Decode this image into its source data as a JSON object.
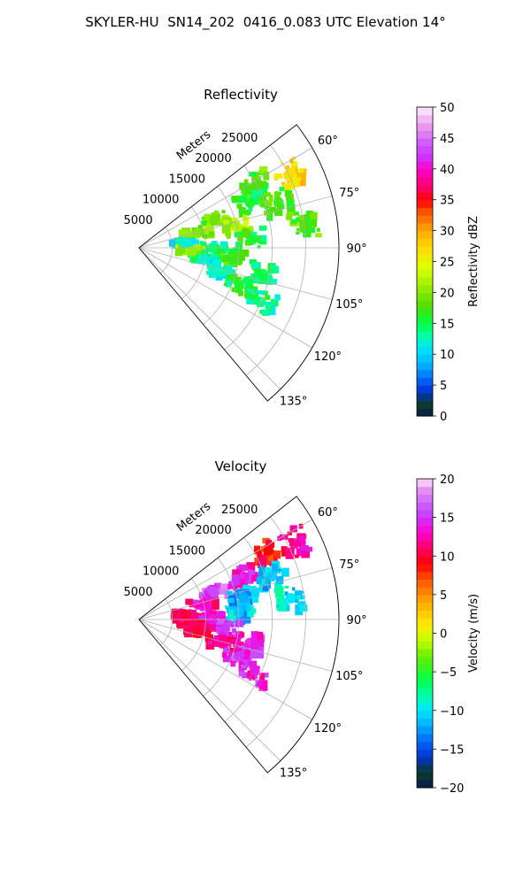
{
  "figure": {
    "suptitle": "SKYLER-HU  SN14_202  0416_0.083 UTC Elevation 14°"
  },
  "chart_data": [
    {
      "type": "heatmap",
      "projection": "polar-sector",
      "title": "Reflectivity",
      "radial_axis_label": "Meters",
      "radial_ticks": [
        "5000",
        "10000",
        "15000",
        "20000",
        "25000"
      ],
      "azimuth_ticks": [
        "60°",
        "75°",
        "90°",
        "105°",
        "120°",
        "135°"
      ],
      "azimuth_range_deg": [
        52,
        140
      ],
      "range_max_m": 30000,
      "colorbar": {
        "label": "Reflectivity dBZ",
        "min": 0,
        "max": 50,
        "ticks": [
          "0",
          "5",
          "10",
          "15",
          "20",
          "25",
          "30",
          "35",
          "40",
          "45",
          "50"
        ],
        "stops": [
          {
            "v": 0,
            "c": "#0a1a4a"
          },
          {
            "v": 2,
            "c": "#0b3d2a"
          },
          {
            "v": 4,
            "c": "#0033cc"
          },
          {
            "v": 6,
            "c": "#0066ff"
          },
          {
            "v": 8,
            "c": "#00aaff"
          },
          {
            "v": 11,
            "c": "#00e5ff"
          },
          {
            "v": 13,
            "c": "#00ffaa"
          },
          {
            "v": 15,
            "c": "#00ff44"
          },
          {
            "v": 18,
            "c": "#55dd00"
          },
          {
            "v": 21,
            "c": "#99ee00"
          },
          {
            "v": 24,
            "c": "#ddff00"
          },
          {
            "v": 27,
            "c": "#ffdd00"
          },
          {
            "v": 30,
            "c": "#ffaa00"
          },
          {
            "v": 33,
            "c": "#ff5500"
          },
          {
            "v": 35,
            "c": "#ff0000"
          },
          {
            "v": 37,
            "c": "#ff0066"
          },
          {
            "v": 40,
            "c": "#ff00cc"
          },
          {
            "v": 42,
            "c": "#cc33ff"
          },
          {
            "v": 44,
            "c": "#cc55ff"
          },
          {
            "v": 47,
            "c": "#ee99ee"
          },
          {
            "v": 50,
            "c": "#ffeeff"
          }
        ]
      },
      "cells": [
        {
          "az": 62,
          "r": 20000,
          "v": 18
        },
        {
          "az": 64,
          "r": 25000,
          "v": 27
        },
        {
          "az": 68,
          "r": 18000,
          "v": 16
        },
        {
          "az": 70,
          "r": 12000,
          "v": 19
        },
        {
          "az": 72,
          "r": 22000,
          "v": 17
        },
        {
          "az": 76,
          "r": 9000,
          "v": 20
        },
        {
          "az": 78,
          "r": 15000,
          "v": 22
        },
        {
          "az": 82,
          "r": 25000,
          "v": 18
        },
        {
          "az": 84,
          "r": 7000,
          "v": 12
        },
        {
          "az": 86,
          "r": 17000,
          "v": 16
        },
        {
          "az": 90,
          "r": 11000,
          "v": 14
        },
        {
          "az": 94,
          "r": 8000,
          "v": 21
        },
        {
          "az": 96,
          "r": 14000,
          "v": 17
        },
        {
          "az": 100,
          "r": 10000,
          "v": 12
        },
        {
          "az": 102,
          "r": 19000,
          "v": 15
        },
        {
          "az": 106,
          "r": 13000,
          "v": 13
        },
        {
          "az": 110,
          "r": 16000,
          "v": 16
        },
        {
          "az": 114,
          "r": 20000,
          "v": 14
        }
      ]
    },
    {
      "type": "heatmap",
      "projection": "polar-sector",
      "title": "Velocity",
      "radial_axis_label": "Meters",
      "radial_ticks": [
        "5000",
        "10000",
        "15000",
        "20000",
        "25000"
      ],
      "azimuth_ticks": [
        "60°",
        "75°",
        "90°",
        "105°",
        "120°",
        "135°"
      ],
      "azimuth_range_deg": [
        52,
        140
      ],
      "range_max_m": 30000,
      "colorbar": {
        "label": "Velocity (m/s)",
        "min": -20,
        "max": 20,
        "ticks": [
          "−20",
          "−15",
          "−10",
          "−5",
          "0",
          "5",
          "10",
          "15",
          "20"
        ],
        "stops": [
          {
            "v": -20,
            "c": "#0a1a4a"
          },
          {
            "v": -18,
            "c": "#0b3d2a"
          },
          {
            "v": -16,
            "c": "#0033cc"
          },
          {
            "v": -14,
            "c": "#0066ff"
          },
          {
            "v": -12,
            "c": "#00aaff"
          },
          {
            "v": -10,
            "c": "#00e5ff"
          },
          {
            "v": -8,
            "c": "#00ffaa"
          },
          {
            "v": -6,
            "c": "#00ff44"
          },
          {
            "v": -3,
            "c": "#66ee00"
          },
          {
            "v": -1,
            "c": "#bbff00"
          },
          {
            "v": 1,
            "c": "#ffee00"
          },
          {
            "v": 4,
            "c": "#ffaa00"
          },
          {
            "v": 7,
            "c": "#ff5500"
          },
          {
            "v": 9,
            "c": "#ff0000"
          },
          {
            "v": 11,
            "c": "#ff0066"
          },
          {
            "v": 13,
            "c": "#ff00cc"
          },
          {
            "v": 15,
            "c": "#cc33ff"
          },
          {
            "v": 17,
            "c": "#cc66ff"
          },
          {
            "v": 19,
            "c": "#ee99ee"
          },
          {
            "v": 20,
            "c": "#ffeeff"
          }
        ]
      },
      "cells": [
        {
          "az": 62,
          "r": 22000,
          "v": 9
        },
        {
          "az": 64,
          "r": 26000,
          "v": 12
        },
        {
          "az": 68,
          "r": 17000,
          "v": 14
        },
        {
          "az": 70,
          "r": 12000,
          "v": 16
        },
        {
          "az": 72,
          "r": 21000,
          "v": -11
        },
        {
          "az": 76,
          "r": 10000,
          "v": 13
        },
        {
          "az": 78,
          "r": 16000,
          "v": -12
        },
        {
          "az": 82,
          "r": 23000,
          "v": -10
        },
        {
          "az": 84,
          "r": 7000,
          "v": 10
        },
        {
          "az": 86,
          "r": 15000,
          "v": -11
        },
        {
          "az": 90,
          "r": 11000,
          "v": 14
        },
        {
          "az": 94,
          "r": 8000,
          "v": 11
        },
        {
          "az": 96,
          "r": 13000,
          "v": 15
        },
        {
          "az": 100,
          "r": 9000,
          "v": 10
        },
        {
          "az": 102,
          "r": 17000,
          "v": 14
        },
        {
          "az": 106,
          "r": 13000,
          "v": 12
        },
        {
          "az": 110,
          "r": 16000,
          "v": 15
        },
        {
          "az": 114,
          "r": 19000,
          "v": 14
        }
      ]
    }
  ]
}
